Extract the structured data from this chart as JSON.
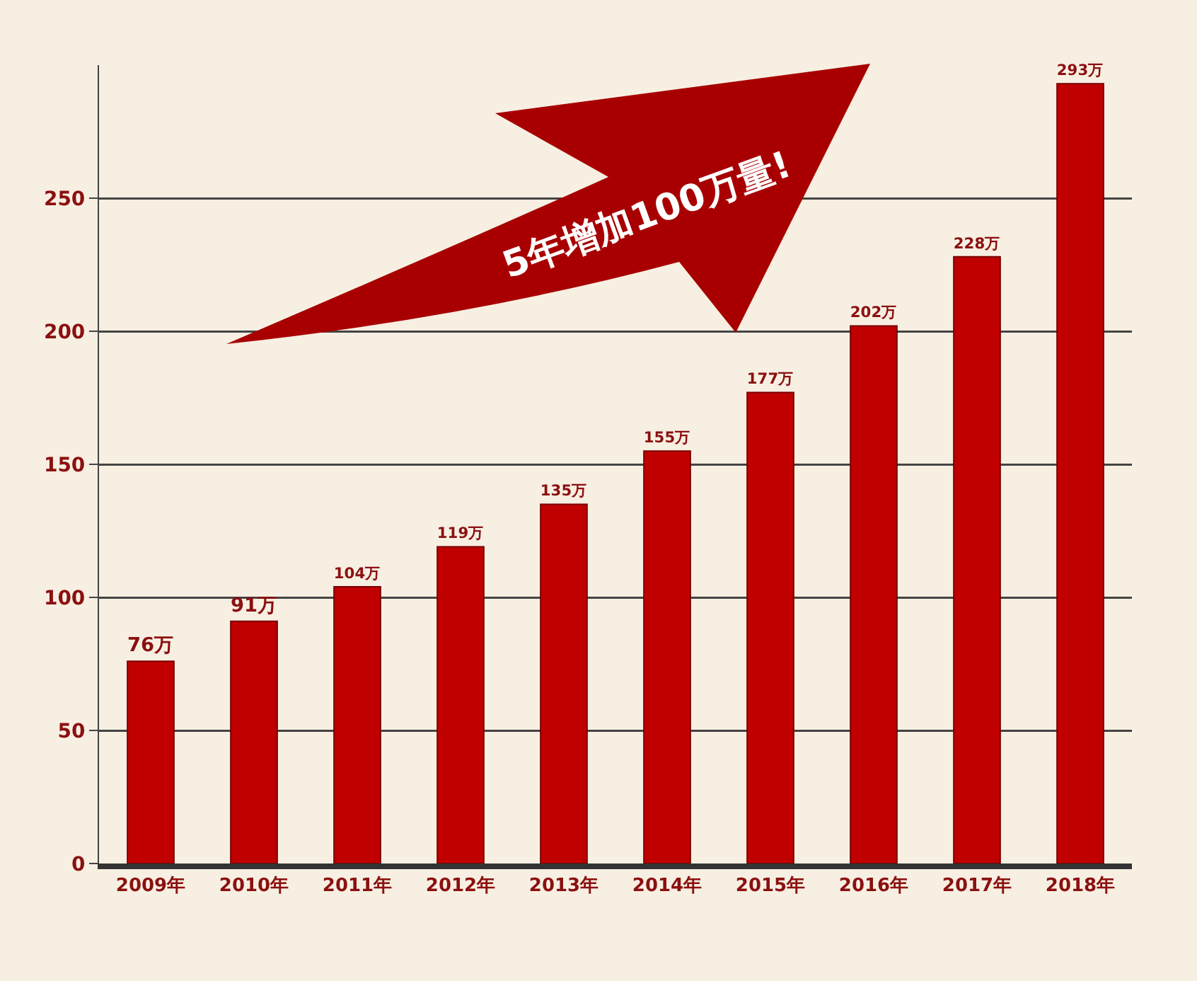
{
  "chart_data": {
    "type": "bar",
    "categories": [
      "2009年",
      "2010年",
      "2011年",
      "2012年",
      "2013年",
      "2014年",
      "2015年",
      "2016年",
      "2017年",
      "2018年"
    ],
    "values": [
      76,
      91,
      104,
      119,
      135,
      155,
      177,
      202,
      228,
      293
    ],
    "value_labels": [
      "76万",
      "91万",
      "104万",
      "119万",
      "135万",
      "155万",
      "177万",
      "202万",
      "228万",
      "293万"
    ],
    "color": "#c00000",
    "ylim": [
      0,
      300
    ],
    "yticks": [
      0,
      50,
      100,
      150,
      200,
      250
    ],
    "grid": "y",
    "annotations": [
      "5年增加100万量!"
    ]
  }
}
